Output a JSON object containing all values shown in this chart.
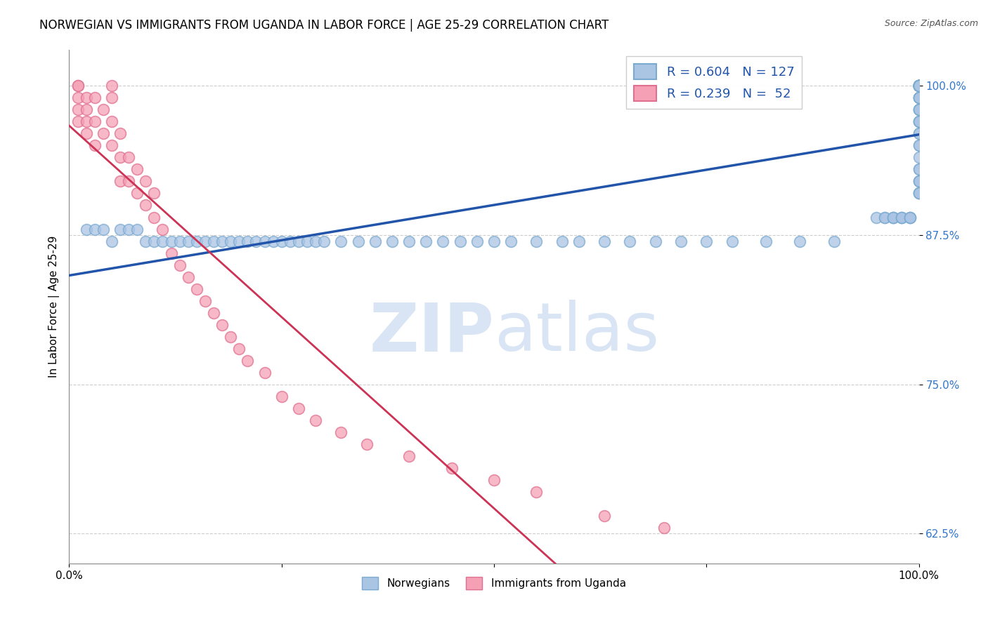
{
  "title": "NORWEGIAN VS IMMIGRANTS FROM UGANDA IN LABOR FORCE | AGE 25-29 CORRELATION CHART",
  "source": "Source: ZipAtlas.com",
  "ylabel": "In Labor Force | Age 25-29",
  "xlim": [
    0.0,
    100.0
  ],
  "ylim": [
    60.0,
    103.0
  ],
  "yticks": [
    62.5,
    75.0,
    87.5,
    100.0
  ],
  "ytick_labels": [
    "62.5%",
    "75.0%",
    "87.5%",
    "100.0%"
  ],
  "r_norwegian": 0.604,
  "n_norwegian": 127,
  "r_uganda": 0.239,
  "n_uganda": 52,
  "norwegian_color": "#aac4e4",
  "norwegian_edge_color": "#7aaad0",
  "uganda_color": "#f5a0b5",
  "uganda_edge_color": "#e07090",
  "norwegian_line_color": "#2255aa",
  "uganda_line_color": "#cc3355",
  "background_color": "#ffffff",
  "watermark_zip": "ZIP",
  "watermark_atlas": "atlas",
  "title_fontsize": 12,
  "axis_label_fontsize": 11,
  "tick_fontsize": 11,
  "legend_fontsize": 13,
  "nor_x": [
    2,
    3,
    4,
    5,
    6,
    7,
    8,
    9,
    10,
    11,
    12,
    13,
    14,
    15,
    16,
    17,
    18,
    19,
    20,
    21,
    22,
    23,
    24,
    25,
    26,
    27,
    28,
    29,
    30,
    32,
    34,
    36,
    38,
    40,
    42,
    44,
    46,
    48,
    50,
    52,
    55,
    58,
    60,
    63,
    66,
    69,
    72,
    75,
    78,
    82,
    86,
    90,
    95,
    96,
    96,
    97,
    97,
    97,
    98,
    98,
    98,
    99,
    99,
    99,
    100,
    100,
    100,
    100,
    100,
    100,
    100,
    100,
    100,
    100,
    100,
    100,
    100,
    100,
    100,
    100,
    100,
    100,
    100,
    100,
    100,
    100,
    100,
    100,
    100,
    100,
    100,
    100,
    100,
    100,
    100,
    100,
    100,
    100,
    100,
    100,
    100,
    100,
    100,
    100,
    100,
    100,
    100,
    100,
    100,
    100,
    100,
    100,
    100,
    100,
    100,
    100,
    100,
    100,
    100,
    100,
    100,
    100,
    100,
    100,
    100,
    100,
    100
  ],
  "nor_y": [
    88,
    88,
    88,
    87,
    88,
    88,
    88,
    87,
    87,
    87,
    87,
    87,
    87,
    87,
    87,
    87,
    87,
    87,
    87,
    87,
    87,
    87,
    87,
    87,
    87,
    87,
    87,
    87,
    87,
    87,
    87,
    87,
    87,
    87,
    87,
    87,
    87,
    87,
    87,
    87,
    87,
    87,
    87,
    87,
    87,
    87,
    87,
    87,
    87,
    87,
    87,
    87,
    89,
    89,
    89,
    89,
    89,
    89,
    89,
    89,
    89,
    89,
    89,
    89,
    91,
    91,
    91,
    91,
    92,
    92,
    92,
    93,
    93,
    94,
    95,
    95,
    96,
    96,
    97,
    97,
    97,
    97,
    98,
    98,
    98,
    98,
    99,
    99,
    99,
    99,
    99,
    100,
    100,
    100,
    100,
    100,
    100,
    100,
    100,
    100,
    100,
    100,
    100,
    100,
    100,
    100,
    100,
    100,
    100,
    100,
    100,
    100,
    100,
    100,
    100,
    100,
    100,
    100,
    100,
    100,
    100,
    100,
    100,
    100,
    100,
    100,
    100
  ],
  "uga_x": [
    1,
    1,
    1,
    1,
    1,
    2,
    2,
    2,
    2,
    3,
    3,
    3,
    4,
    4,
    5,
    5,
    5,
    5,
    6,
    6,
    6,
    7,
    7,
    8,
    8,
    9,
    9,
    10,
    10,
    11,
    12,
    13,
    14,
    15,
    16,
    17,
    18,
    19,
    20,
    21,
    23,
    25,
    27,
    29,
    32,
    35,
    40,
    45,
    50,
    55,
    63,
    70
  ],
  "uga_y": [
    100,
    100,
    99,
    98,
    97,
    99,
    98,
    97,
    96,
    99,
    97,
    95,
    98,
    96,
    100,
    99,
    97,
    95,
    96,
    94,
    92,
    94,
    92,
    93,
    91,
    92,
    90,
    91,
    89,
    88,
    86,
    85,
    84,
    83,
    82,
    81,
    80,
    79,
    78,
    77,
    76,
    74,
    73,
    72,
    71,
    70,
    69,
    68,
    67,
    66,
    64,
    63
  ]
}
